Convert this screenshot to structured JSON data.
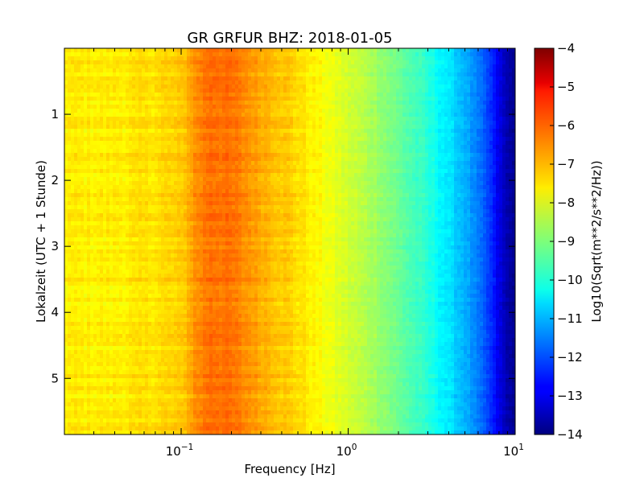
{
  "chart_data": {
    "type": "heatmap",
    "title": "GR GRFUR BHZ: 2018-01-05",
    "xlabel": "Frequency [Hz]",
    "ylabel": "Lokalzeit (UTC + 1 Stunde)",
    "xscale": "log",
    "xlim": [
      0.02,
      10
    ],
    "ylim": [
      5.85,
      0
    ],
    "x_ticks": [
      {
        "value": 0.1,
        "base": "10",
        "exp": "−1"
      },
      {
        "value": 1,
        "base": "10",
        "exp": "0"
      },
      {
        "value": 10,
        "base": "10",
        "exp": "1"
      }
    ],
    "y_ticks": [
      {
        "value": 1,
        "label": "1"
      },
      {
        "value": 2,
        "label": "2"
      },
      {
        "value": 3,
        "label": "3"
      },
      {
        "value": 4,
        "label": "4"
      },
      {
        "value": 5,
        "label": "5"
      }
    ],
    "colorbar": {
      "label": "Log10(Sqrt(m**2/s**2/Hz))",
      "range": [
        -14,
        -4
      ],
      "colormap": "jet",
      "ticks": [
        "−4",
        "−5",
        "−6",
        "−7",
        "−8",
        "−9",
        "−10",
        "−11",
        "−12",
        "−13",
        "−14"
      ]
    },
    "spectrum_profile": {
      "frequency_hz": [
        0.02,
        0.04,
        0.06,
        0.1,
        0.12,
        0.15,
        0.2,
        0.3,
        0.45,
        0.7,
        1.0,
        1.5,
        2.0,
        3.0,
        4.0,
        5.0,
        6.0,
        7.0,
        8.0,
        9.0,
        10.0
      ],
      "log10_psd": [
        -7.6,
        -7.6,
        -7.5,
        -7.3,
        -6.7,
        -6.3,
        -6.4,
        -6.9,
        -7.3,
        -7.8,
        -8.2,
        -8.7,
        -9.2,
        -9.9,
        -10.5,
        -11.0,
        -11.6,
        -12.2,
        -13.0,
        -13.6,
        -13.8
      ]
    }
  }
}
